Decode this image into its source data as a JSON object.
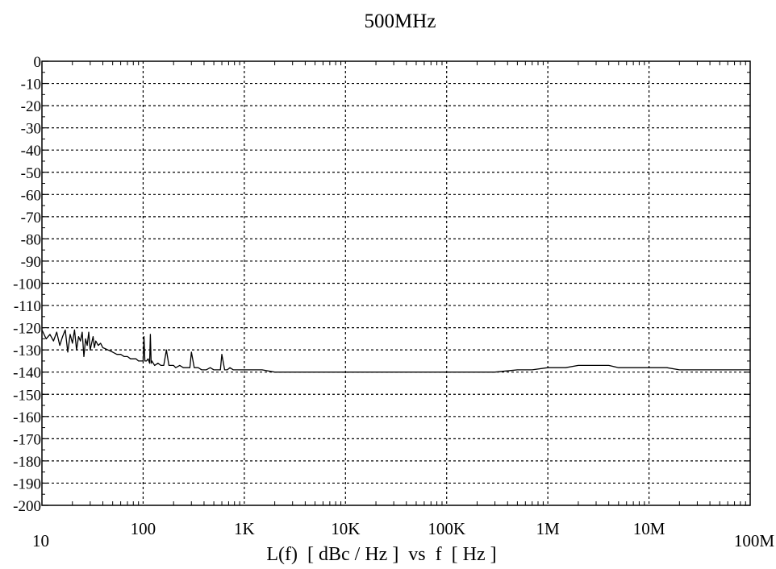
{
  "chart_data": {
    "type": "line",
    "title": "500MHz",
    "xlabel": "L(f)  [ dBc / Hz ]  vs  f  [ Hz ]",
    "ylabel": "",
    "x_scale": "log",
    "xlim": [
      10,
      100000000
    ],
    "ylim": [
      -200,
      0
    ],
    "grid": true,
    "x_ticks": [
      {
        "value": 10,
        "label": "10"
      },
      {
        "value": 100,
        "label": "100"
      },
      {
        "value": 1000,
        "label": "1K"
      },
      {
        "value": 10000,
        "label": "10K"
      },
      {
        "value": 100000,
        "label": "100K"
      },
      {
        "value": 1000000,
        "label": "1M"
      },
      {
        "value": 10000000,
        "label": "10M"
      },
      {
        "value": 100000000,
        "label": "100M"
      }
    ],
    "y_ticks": [
      {
        "value": 0,
        "label": "0"
      },
      {
        "value": -10,
        "label": "-10"
      },
      {
        "value": -20,
        "label": "-20"
      },
      {
        "value": -30,
        "label": "-30"
      },
      {
        "value": -40,
        "label": "-40"
      },
      {
        "value": -50,
        "label": "-50"
      },
      {
        "value": -60,
        "label": "-60"
      },
      {
        "value": -70,
        "label": "-70"
      },
      {
        "value": -80,
        "label": "-80"
      },
      {
        "value": -90,
        "label": "-90"
      },
      {
        "value": -100,
        "label": "-100"
      },
      {
        "value": -110,
        "label": "-110"
      },
      {
        "value": -120,
        "label": "-120"
      },
      {
        "value": -130,
        "label": "-130"
      },
      {
        "value": -140,
        "label": "-140"
      },
      {
        "value": -150,
        "label": "-150"
      },
      {
        "value": -160,
        "label": "-160"
      },
      {
        "value": -170,
        "label": "-170"
      },
      {
        "value": -180,
        "label": "-180"
      },
      {
        "value": -190,
        "label": "-190"
      },
      {
        "value": -200,
        "label": "-200"
      }
    ],
    "series": [
      {
        "name": "",
        "color": "#000000",
        "x": [
          10,
          11,
          12,
          13,
          14,
          15,
          16,
          17,
          18,
          19,
          20,
          21,
          22,
          23,
          24,
          25,
          26,
          27,
          28,
          29,
          30,
          31,
          32,
          33,
          34,
          36,
          38,
          40,
          45,
          50,
          55,
          60,
          65,
          70,
          75,
          80,
          85,
          90,
          95,
          100,
          102,
          104,
          108,
          112,
          116,
          118,
          120,
          122,
          126,
          130,
          140,
          150,
          160,
          170,
          180,
          190,
          200,
          210,
          230,
          250,
          270,
          290,
          300,
          320,
          350,
          380,
          420,
          460,
          500,
          540,
          580,
          600,
          640,
          680,
          720,
          780,
          850,
          920,
          1000,
          1200,
          1500,
          2000,
          2500,
          3000,
          4000,
          5000,
          7000,
          10000,
          15000,
          20000,
          30000,
          50000,
          70000,
          100000,
          150000,
          200000,
          300000,
          500000,
          700000,
          1000000,
          1500000,
          2000000,
          2500000,
          3000000,
          4000000,
          5000000,
          7000000,
          10000000,
          15000000,
          20000000,
          30000000,
          50000000,
          70000000,
          100000000
        ],
        "y": [
          -121,
          -125,
          -123,
          -126,
          -122,
          -128,
          -124,
          -121,
          -131,
          -123,
          -127,
          -121,
          -130,
          -124,
          -126,
          -122,
          -133,
          -125,
          -128,
          -122,
          -130,
          -127,
          -124,
          -129,
          -126,
          -128,
          -127,
          -129,
          -130,
          -131,
          -132,
          -132,
          -133,
          -133,
          -134,
          -134,
          -134,
          -135,
          -135,
          -135,
          -124,
          -135,
          -135,
          -134,
          -136,
          -123,
          -136,
          -135,
          -136,
          -137,
          -136,
          -137,
          -137,
          -130,
          -137,
          -137,
          -137,
          -138,
          -137,
          -138,
          -138,
          -138,
          -131,
          -138,
          -138,
          -139,
          -139,
          -138,
          -139,
          -139,
          -139,
          -132,
          -139,
          -139,
          -138,
          -139,
          -139,
          -139,
          -139,
          -139,
          -139,
          -140,
          -140,
          -140,
          -140,
          -140,
          -140,
          -140,
          -140,
          -140,
          -140,
          -140,
          -140,
          -140,
          -140,
          -140,
          -140,
          -139,
          -139,
          -138,
          -138,
          -137,
          -137,
          -137,
          -137,
          -138,
          -138,
          -138,
          -138,
          -139,
          -139,
          -139,
          -139,
          -139
        ]
      }
    ]
  }
}
